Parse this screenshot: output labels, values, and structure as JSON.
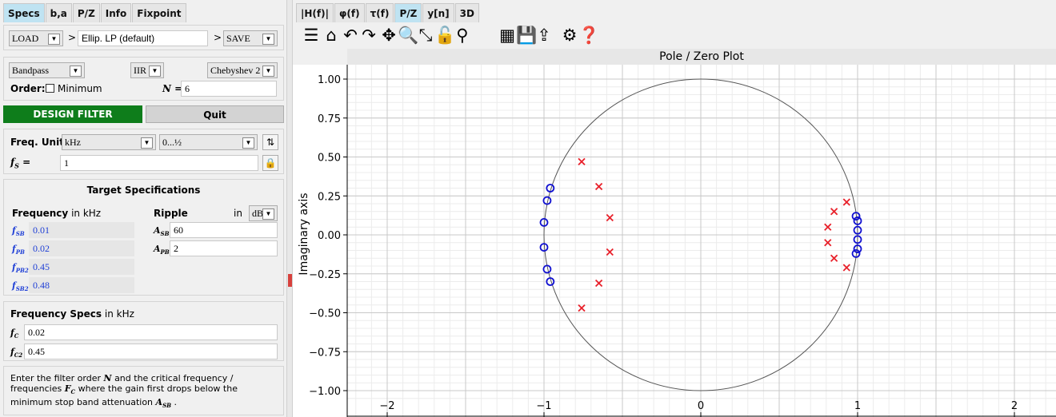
{
  "left_tabs": [
    "Specs",
    "b,a",
    "P/Z",
    "Info",
    "Fixpoint"
  ],
  "load_combo": "LOAD",
  "filter_name": "Ellip. LP (default)",
  "load_sep": ">",
  "save_sep": ">",
  "save_combo": "SAVE",
  "response_type": "Bandpass",
  "filter_class": "IIR",
  "design_method": "Chebyshev 2",
  "order_label": "Order:",
  "minimum_label": "Minimum",
  "n_label": "N =",
  "n_value": "6",
  "design_button": "DESIGN FILTER",
  "quit_button": "Quit",
  "freq_unit_label": "Freq. Unit",
  "freq_unit": "kHz",
  "freq_range": "0...½",
  "fs_label": "f",
  "fs_sub": "S",
  "fs_eq": "=",
  "fs_value": "1",
  "target_specs_title": "Target Specifications",
  "frequency_label": "Frequency",
  "frequency_unit_text": "in kHz",
  "ripple_label": "Ripple",
  "ripple_in": "in",
  "ripple_unit": "dB",
  "freq_specs": [
    {
      "label": "f",
      "sub": "SB",
      "value": "0.01"
    },
    {
      "label": "f",
      "sub": "PB",
      "value": "0.02"
    },
    {
      "label": "f",
      "sub": "PB2",
      "value": "0.45"
    },
    {
      "label": "f",
      "sub": "SB2",
      "value": "0.48"
    }
  ],
  "ripple_specs": [
    {
      "label": "A",
      "sub": "SB",
      "value": "60"
    },
    {
      "label": "A",
      "sub": "PB",
      "value": "2"
    }
  ],
  "frequency_specs_title": "Frequency Specs",
  "frequency_specs_unit": "in kHz",
  "fc": [
    {
      "label": "f",
      "sub": "C",
      "value": "0.02"
    },
    {
      "label": "f",
      "sub": "C2",
      "value": "0.45"
    }
  ],
  "info_text_1": "Enter the filter order",
  "info_n": "N",
  "info_text_2": "and the critical frequency / frequencies",
  "info_fc": "F",
  "info_fc_sub": "C",
  "info_text_3": "where the gain first drops below the minimum stop band attenuation",
  "info_asb": "A",
  "info_asb_sub": "SB",
  "info_text_4": ".",
  "right_tabs": [
    "|H(f)|",
    "φ(f)",
    "τ(f)",
    "P/Z",
    "y[n]",
    "3D"
  ],
  "toolbar_icons": [
    "menu-icon",
    "home-icon",
    "undo-icon",
    "redo-icon",
    "pan-icon",
    "zoom-icon",
    "fit-icon",
    "lock-icon",
    "marker-icon",
    "grid-icon",
    "save-icon",
    "export-icon",
    "settings-icon",
    "help-icon"
  ],
  "plot_title": "Pole / Zero Plot",
  "y_axis_label": "Imaginary axis",
  "colors": {
    "pole": "#e8202a",
    "zero": "#1010d0",
    "active_tab": "#bfe3f2",
    "design_button": "#0e7d1b"
  },
  "chart_data": {
    "type": "scatter",
    "title": "Pole / Zero Plot",
    "xlabel": "",
    "ylabel": "Imaginary axis",
    "xlim": [
      -2.3,
      2.2
    ],
    "ylim": [
      -1.05,
      1.05
    ],
    "x_ticks": [
      "−2",
      "−1",
      "0",
      "1",
      "2"
    ],
    "y_ticks": [
      "1.00",
      "0.75",
      "0.50",
      "0.25",
      "0.00",
      "−0.25",
      "−0.50",
      "−0.75",
      "−1.00"
    ],
    "grid": true,
    "unit_circle": true,
    "series": [
      {
        "marker": "x",
        "points": [
          [
            -0.76,
            0.47
          ],
          [
            -0.65,
            0.31
          ],
          [
            -0.58,
            0.11
          ],
          [
            -0.58,
            -0.11
          ],
          [
            -0.65,
            -0.31
          ],
          [
            -0.76,
            -0.47
          ],
          [
            0.93,
            0.21
          ],
          [
            0.85,
            0.15
          ],
          [
            0.81,
            0.05
          ],
          [
            0.81,
            -0.05
          ],
          [
            0.85,
            -0.15
          ],
          [
            0.93,
            -0.21
          ]
        ]
      },
      {
        "marker": "o",
        "points": [
          [
            -0.96,
            0.3
          ],
          [
            -0.98,
            0.22
          ],
          [
            -1.0,
            0.08
          ],
          [
            -1.0,
            -0.08
          ],
          [
            -0.98,
            -0.22
          ],
          [
            -0.96,
            -0.3
          ],
          [
            0.99,
            0.12
          ],
          [
            1.0,
            0.09
          ],
          [
            1.0,
            0.03
          ],
          [
            1.0,
            -0.03
          ],
          [
            1.0,
            -0.09
          ],
          [
            0.99,
            -0.12
          ]
        ]
      }
    ]
  }
}
